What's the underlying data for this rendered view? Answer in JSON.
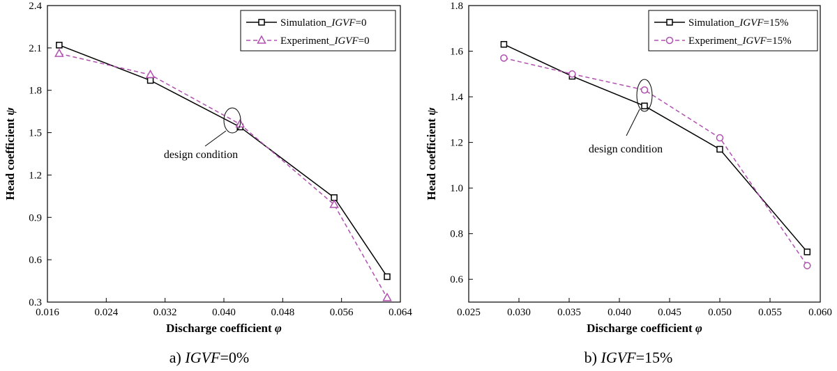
{
  "chart_data": [
    {
      "type": "line",
      "xlabel_prefix": "Discharge coefficient ",
      "xlabel_symbol": "φ",
      "ylabel_prefix": "Head coefficient ",
      "ylabel_symbol": "ψ",
      "xlim": [
        0.016,
        0.064
      ],
      "ylim": [
        0.3,
        2.4
      ],
      "xticks": [
        "0.016",
        "0.024",
        "0.032",
        "0.040",
        "0.048",
        "0.056",
        "0.064"
      ],
      "yticks": [
        "0.3",
        "0.6",
        "0.9",
        "1.2",
        "1.5",
        "1.8",
        "2.1",
        "2.4"
      ],
      "legend_position": "top-right",
      "annotation": "design condition",
      "caption_prefix": "a) ",
      "caption_italic": "IGVF",
      "caption_suffix": "=0%",
      "series": [
        {
          "name_prefix": "Simulation_",
          "name_italic": "IGVF",
          "name_suffix": "=0",
          "color": "#000000",
          "marker": "square",
          "dashed": false,
          "x": [
            0.0176,
            0.03,
            0.0422,
            0.055,
            0.0622
          ],
          "y": [
            2.12,
            1.87,
            1.54,
            1.04,
            0.48
          ]
        },
        {
          "name_prefix": "Experiment_",
          "name_italic": "IGVF",
          "name_suffix": "=0",
          "color": "#b04fb0",
          "marker": "triangle",
          "dashed": true,
          "x": [
            0.0176,
            0.03,
            0.0422,
            0.055,
            0.0622
          ],
          "y": [
            2.06,
            1.91,
            1.56,
            0.99,
            0.33
          ]
        }
      ]
    },
    {
      "type": "line",
      "xlabel_prefix": "Discharge coefficient ",
      "xlabel_symbol": "φ",
      "ylabel_prefix": "Head coefficient ",
      "ylabel_symbol": "ψ",
      "xlim": [
        0.025,
        0.06
      ],
      "ylim": [
        0.5,
        1.8
      ],
      "xticks": [
        "0.025",
        "0.030",
        "0.035",
        "0.040",
        "0.045",
        "0.050",
        "0.055",
        "0.060"
      ],
      "yticks": [
        "0.6",
        "0.8",
        "1.0",
        "1.2",
        "1.4",
        "1.6",
        "1.8"
      ],
      "legend_position": "top-right",
      "annotation": "design condition",
      "caption_prefix": "b) ",
      "caption_italic": "IGVF",
      "caption_suffix": "=15%",
      "series": [
        {
          "name_prefix": "Simulation_",
          "name_italic": "IGVF",
          "name_suffix": "=15%",
          "color": "#000000",
          "marker": "square",
          "dashed": false,
          "x": [
            0.0285,
            0.0353,
            0.0425,
            0.05,
            0.0587
          ],
          "y": [
            1.63,
            1.49,
            1.36,
            1.17,
            0.72
          ]
        },
        {
          "name_prefix": "Experiment_",
          "name_italic": "IGVF",
          "name_suffix": "=15%",
          "color": "#b04fb0",
          "marker": "circle",
          "dashed": true,
          "x": [
            0.0285,
            0.0353,
            0.0425,
            0.05,
            0.0587
          ],
          "y": [
            1.57,
            1.5,
            1.43,
            1.22,
            0.66
          ]
        }
      ]
    }
  ]
}
